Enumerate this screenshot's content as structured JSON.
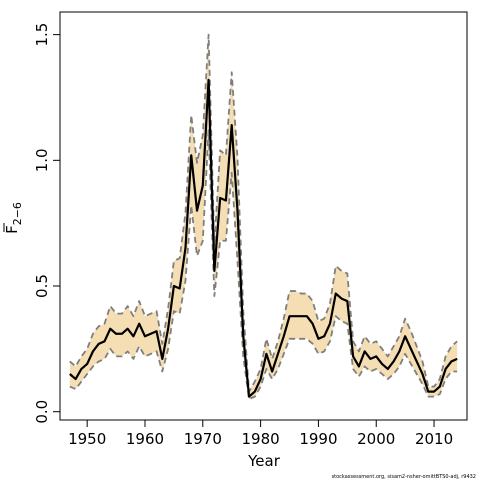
{
  "chart_data": {
    "type": "line",
    "xlabel": "Year",
    "ylabel": "F",
    "ylabel_subscript": "2−6",
    "xlim": [
      1945.3,
      2015.7
    ],
    "ylim": [
      -0.033,
      1.59
    ],
    "xticks": [
      1950,
      1960,
      1970,
      1980,
      1990,
      2000,
      2010
    ],
    "yticks": [
      0.0,
      0.5,
      1.0,
      1.5
    ],
    "ytick_labels": [
      "0.0",
      "0.5",
      "1.0",
      "1.5"
    ],
    "grid": false,
    "legend": "none",
    "footer_text": "stockassessment.org, sisam2-nsher-omittBTS0-adj, r9432",
    "colors": {
      "band": "#f5deb3",
      "mean": "#000000",
      "bounds": "#7f7f7f"
    },
    "series": [
      {
        "x": [
          1947,
          1948,
          1949,
          1950,
          1951,
          1952,
          1953,
          1954,
          1955,
          1956,
          1957,
          1958,
          1959,
          1960,
          1961,
          1962,
          1963,
          1964,
          1965,
          1966,
          1967,
          1968,
          1969,
          1970,
          1971,
          1972,
          1973,
          1974,
          1975,
          1976,
          1977,
          1978,
          1979,
          1980,
          1981,
          1982,
          1983,
          1984,
          1985,
          1986,
          1987,
          1988,
          1989,
          1990,
          1991,
          1992,
          1993,
          1994,
          1995,
          1996,
          1997,
          1998,
          1999,
          2000,
          2001,
          2002,
          2003,
          2004,
          2005,
          2006,
          2007,
          2008,
          2009,
          2010,
          2011,
          2012,
          2013,
          2014
        ],
        "mean": [
          0.15,
          0.13,
          0.17,
          0.19,
          0.24,
          0.27,
          0.28,
          0.33,
          0.31,
          0.31,
          0.33,
          0.3,
          0.35,
          0.3,
          0.31,
          0.32,
          0.21,
          0.33,
          0.5,
          0.49,
          0.65,
          1.02,
          0.8,
          0.9,
          1.32,
          0.56,
          0.85,
          0.84,
          1.14,
          0.8,
          0.3,
          0.06,
          0.08,
          0.13,
          0.23,
          0.16,
          0.23,
          0.3,
          0.38,
          0.38,
          0.38,
          0.38,
          0.35,
          0.29,
          0.3,
          0.35,
          0.47,
          0.45,
          0.44,
          0.22,
          0.18,
          0.24,
          0.21,
          0.22,
          0.19,
          0.17,
          0.2,
          0.24,
          0.3,
          0.25,
          0.2,
          0.15,
          0.08,
          0.08,
          0.1,
          0.17,
          0.2,
          0.21
        ],
        "lower": [
          0.1,
          0.09,
          0.12,
          0.15,
          0.18,
          0.2,
          0.21,
          0.25,
          0.22,
          0.22,
          0.24,
          0.21,
          0.26,
          0.22,
          0.23,
          0.24,
          0.16,
          0.25,
          0.4,
          0.39,
          0.52,
          0.82,
          0.62,
          0.68,
          1.12,
          0.46,
          0.68,
          0.68,
          0.95,
          0.6,
          0.22,
          0.05,
          0.06,
          0.1,
          0.17,
          0.13,
          0.17,
          0.23,
          0.29,
          0.29,
          0.29,
          0.29,
          0.27,
          0.23,
          0.24,
          0.28,
          0.38,
          0.36,
          0.35,
          0.17,
          0.14,
          0.18,
          0.16,
          0.17,
          0.15,
          0.13,
          0.15,
          0.18,
          0.23,
          0.19,
          0.15,
          0.11,
          0.06,
          0.06,
          0.07,
          0.13,
          0.16,
          0.16
        ],
        "upper": [
          0.2,
          0.18,
          0.22,
          0.25,
          0.31,
          0.34,
          0.35,
          0.42,
          0.39,
          0.39,
          0.42,
          0.38,
          0.44,
          0.38,
          0.39,
          0.4,
          0.27,
          0.41,
          0.6,
          0.61,
          0.79,
          1.18,
          0.99,
          1.1,
          1.5,
          0.66,
          1.04,
          1.02,
          1.35,
          1.01,
          0.4,
          0.08,
          0.12,
          0.17,
          0.29,
          0.21,
          0.28,
          0.37,
          0.48,
          0.48,
          0.47,
          0.47,
          0.44,
          0.36,
          0.37,
          0.43,
          0.58,
          0.56,
          0.55,
          0.28,
          0.24,
          0.3,
          0.27,
          0.28,
          0.25,
          0.22,
          0.26,
          0.3,
          0.37,
          0.32,
          0.26,
          0.2,
          0.1,
          0.1,
          0.13,
          0.22,
          0.26,
          0.28
        ]
      }
    ]
  }
}
